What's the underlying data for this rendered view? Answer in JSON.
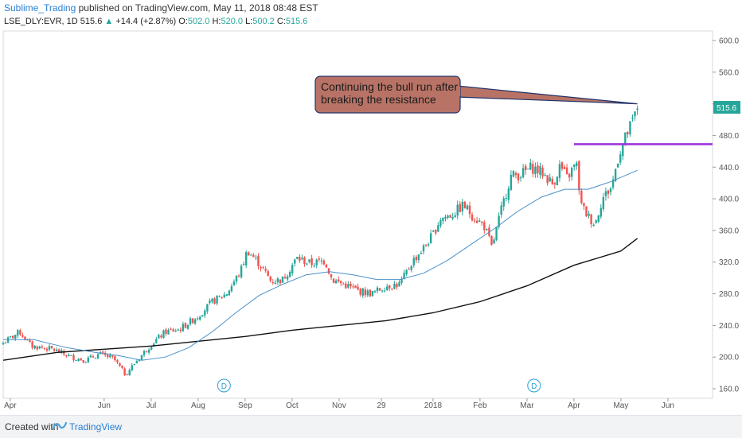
{
  "header": {
    "author": "Sublime_Trading",
    "published": "published on TradingView.com, May 11, 2018 08:48 EST",
    "symbol": "LSE_DLY:EVR, 1D",
    "last": "515.6",
    "arrow": "▲",
    "change": "+14.4 (+2.87%)",
    "o_label": "O:",
    "o": "502.0",
    "h_label": "H:",
    "h": "520.0",
    "l_label": "L:",
    "l": "500.2",
    "c_label": "C:",
    "c": "515.6"
  },
  "footer": {
    "created_with": "Created with",
    "brand": "TradingView"
  },
  "colors": {
    "up": "#26a69a",
    "down": "#ef5350",
    "ma_fast": "#4a90c8",
    "ma_slow": "#111111",
    "resistance": "#9b30d9",
    "annotation_fill": "#b87366",
    "annotation_border": "#22336b",
    "price_badge": "#26a69a"
  },
  "chart_data": {
    "type": "candlestick",
    "symbol": "LSE_DLY:EVR",
    "interval": "1D",
    "ylim": [
      148,
      612
    ],
    "y_ticks": [
      "160.0",
      "200.0",
      "240.0",
      "280.0",
      "320.0",
      "360.0",
      "400.0",
      "440.0",
      "480.0",
      "520.0",
      "560.0",
      "600.0"
    ],
    "x_ticks": [
      {
        "label": "Apr",
        "pos": 0.0
      },
      {
        "label": "Jun",
        "pos": 2.0
      },
      {
        "label": "Jul",
        "pos": 3.0
      },
      {
        "label": "Aug",
        "pos": 4.0
      },
      {
        "label": "Sep",
        "pos": 5.0
      },
      {
        "label": "Oct",
        "pos": 6.0
      },
      {
        "label": "Nov",
        "pos": 7.0
      },
      {
        "label": "29",
        "pos": 7.9
      },
      {
        "label": "2018",
        "pos": 9.0
      },
      {
        "label": "Feb",
        "pos": 10.0
      },
      {
        "label": "Mar",
        "pos": 11.0
      },
      {
        "label": "Apr",
        "pos": 12.0
      },
      {
        "label": "May",
        "pos": 13.0
      },
      {
        "label": "Jun",
        "pos": 14.0
      }
    ],
    "x_range": [
      -0.15,
      14.95
    ],
    "last_price": "515.6",
    "close_series": [
      {
        "t": -0.15,
        "p": 218
      },
      {
        "t": 0.2,
        "p": 232
      },
      {
        "t": 0.45,
        "p": 214
      },
      {
        "t": 0.9,
        "p": 210
      },
      {
        "t": 1.3,
        "p": 200
      },
      {
        "t": 1.6,
        "p": 196
      },
      {
        "t": 1.9,
        "p": 204
      },
      {
        "t": 2.2,
        "p": 198
      },
      {
        "t": 2.45,
        "p": 178
      },
      {
        "t": 2.7,
        "p": 196
      },
      {
        "t": 3.0,
        "p": 216
      },
      {
        "t": 3.3,
        "p": 232
      },
      {
        "t": 3.6,
        "p": 235
      },
      {
        "t": 4.0,
        "p": 252
      },
      {
        "t": 4.3,
        "p": 270
      },
      {
        "t": 4.6,
        "p": 280
      },
      {
        "t": 4.9,
        "p": 308
      },
      {
        "t": 5.05,
        "p": 335
      },
      {
        "t": 5.3,
        "p": 318
      },
      {
        "t": 5.55,
        "p": 296
      },
      {
        "t": 5.8,
        "p": 298
      },
      {
        "t": 6.1,
        "p": 325
      },
      {
        "t": 6.4,
        "p": 318
      },
      {
        "t": 6.7,
        "p": 322
      },
      {
        "t": 6.85,
        "p": 298
      },
      {
        "t": 7.1,
        "p": 292
      },
      {
        "t": 7.4,
        "p": 284
      },
      {
        "t": 7.7,
        "p": 280
      },
      {
        "t": 8.0,
        "p": 290
      },
      {
        "t": 8.3,
        "p": 292
      },
      {
        "t": 8.55,
        "p": 320
      },
      {
        "t": 8.8,
        "p": 338
      },
      {
        "t": 9.0,
        "p": 355
      },
      {
        "t": 9.15,
        "p": 375
      },
      {
        "t": 9.4,
        "p": 380
      },
      {
        "t": 9.65,
        "p": 392
      },
      {
        "t": 9.85,
        "p": 378
      },
      {
        "t": 10.1,
        "p": 365
      },
      {
        "t": 10.25,
        "p": 338
      },
      {
        "t": 10.45,
        "p": 385
      },
      {
        "t": 10.65,
        "p": 428
      },
      {
        "t": 10.9,
        "p": 432
      },
      {
        "t": 11.1,
        "p": 440
      },
      {
        "t": 11.35,
        "p": 432
      },
      {
        "t": 11.55,
        "p": 418
      },
      {
        "t": 11.7,
        "p": 442
      },
      {
        "t": 11.85,
        "p": 426
      },
      {
        "t": 12.05,
        "p": 445
      },
      {
        "t": 12.15,
        "p": 392
      },
      {
        "t": 12.3,
        "p": 378
      },
      {
        "t": 12.45,
        "p": 368
      },
      {
        "t": 12.6,
        "p": 400
      },
      {
        "t": 12.8,
        "p": 415
      },
      {
        "t": 12.95,
        "p": 455
      },
      {
        "t": 13.1,
        "p": 478
      },
      {
        "t": 13.25,
        "p": 498
      },
      {
        "t": 13.35,
        "p": 515.6
      }
    ],
    "ma_fast": [
      {
        "t": -0.15,
        "p": 222
      },
      {
        "t": 0.5,
        "p": 222
      },
      {
        "t": 1.2,
        "p": 212
      },
      {
        "t": 1.8,
        "p": 206
      },
      {
        "t": 2.3,
        "p": 202
      },
      {
        "t": 2.8,
        "p": 196
      },
      {
        "t": 3.3,
        "p": 200
      },
      {
        "t": 3.8,
        "p": 212
      },
      {
        "t": 4.3,
        "p": 232
      },
      {
        "t": 4.8,
        "p": 256
      },
      {
        "t": 5.3,
        "p": 278
      },
      {
        "t": 5.8,
        "p": 292
      },
      {
        "t": 6.3,
        "p": 304
      },
      {
        "t": 6.8,
        "p": 308
      },
      {
        "t": 7.3,
        "p": 304
      },
      {
        "t": 7.8,
        "p": 298
      },
      {
        "t": 8.3,
        "p": 298
      },
      {
        "t": 8.8,
        "p": 306
      },
      {
        "t": 9.3,
        "p": 322
      },
      {
        "t": 9.8,
        "p": 342
      },
      {
        "t": 10.3,
        "p": 362
      },
      {
        "t": 10.8,
        "p": 384
      },
      {
        "t": 11.3,
        "p": 402
      },
      {
        "t": 11.8,
        "p": 412
      },
      {
        "t": 12.3,
        "p": 412
      },
      {
        "t": 12.8,
        "p": 422
      },
      {
        "t": 13.35,
        "p": 436
      }
    ],
    "ma_slow": [
      {
        "t": -0.15,
        "p": 196
      },
      {
        "t": 1.0,
        "p": 206
      },
      {
        "t": 2.0,
        "p": 210
      },
      {
        "t": 3.0,
        "p": 214
      },
      {
        "t": 4.0,
        "p": 220
      },
      {
        "t": 5.0,
        "p": 226
      },
      {
        "t": 6.0,
        "p": 234
      },
      {
        "t": 7.0,
        "p": 240
      },
      {
        "t": 8.0,
        "p": 246
      },
      {
        "t": 9.0,
        "p": 256
      },
      {
        "t": 10.0,
        "p": 270
      },
      {
        "t": 11.0,
        "p": 290
      },
      {
        "t": 12.0,
        "p": 316
      },
      {
        "t": 13.0,
        "p": 334
      },
      {
        "t": 13.35,
        "p": 350
      }
    ],
    "resistance": {
      "price": 469,
      "t_start": 12.0,
      "t_end": 14.95
    },
    "dividend_markers": [
      {
        "label": "D",
        "t": 4.55
      },
      {
        "label": "D",
        "t": 11.15
      }
    ],
    "annotation": {
      "text_lines": [
        "Continuing the bull run after",
        "breaking the resistance"
      ],
      "target_t": 13.35,
      "target_p": 520
    }
  }
}
